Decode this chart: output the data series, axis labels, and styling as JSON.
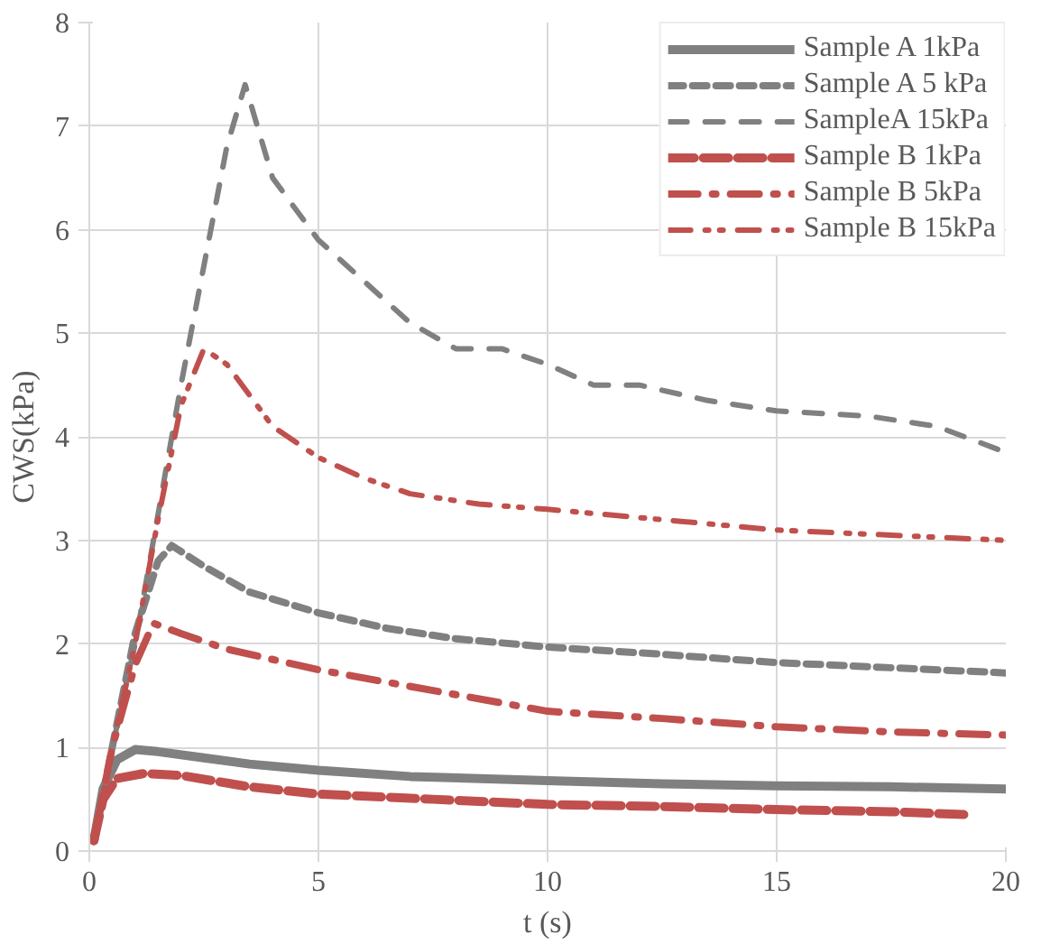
{
  "chart_data": {
    "type": "line",
    "xlabel": "t (s)",
    "ylabel": "CWS(kPa)",
    "xlim": [
      0,
      20
    ],
    "ylim": [
      0,
      8
    ],
    "xticks": [
      0,
      5,
      10,
      15,
      20
    ],
    "yticks": [
      0,
      1,
      2,
      3,
      4,
      5,
      6,
      7,
      8
    ],
    "grid": true,
    "legend": "top right",
    "series": [
      {
        "name": "Sample A 1kPa",
        "color": "#808080",
        "line_style": "solid",
        "x": [
          0.1,
          0.3,
          0.6,
          1.0,
          1.5,
          2.5,
          3.5,
          5,
          7,
          10,
          12.5,
          15,
          17.5,
          20
        ],
        "values": [
          0.1,
          0.6,
          0.88,
          0.98,
          0.96,
          0.9,
          0.84,
          0.78,
          0.72,
          0.68,
          0.65,
          0.63,
          0.62,
          0.6
        ]
      },
      {
        "name": "Sample A 5 kPa",
        "color": "#808080",
        "line_style": "dashed",
        "x": [
          0.1,
          0.5,
          1.0,
          1.5,
          1.8,
          2.5,
          3.5,
          5,
          6.5,
          8,
          10,
          12.5,
          15,
          17.5,
          20
        ],
        "values": [
          0.1,
          1.0,
          2.1,
          2.8,
          2.95,
          2.75,
          2.5,
          2.3,
          2.15,
          2.05,
          1.97,
          1.9,
          1.82,
          1.77,
          1.72
        ]
      },
      {
        "name": "SampleA 15kPa",
        "color": "#808080",
        "line_style": "dashed",
        "x": [
          0.1,
          0.5,
          1.0,
          2.0,
          3.0,
          3.4,
          4.0,
          5,
          6,
          7,
          8,
          9,
          10,
          11,
          12,
          13.5,
          15,
          17,
          18.5,
          20
        ],
        "values": [
          0.1,
          1.0,
          2.0,
          4.5,
          6.8,
          7.4,
          6.5,
          5.9,
          5.5,
          5.1,
          4.85,
          4.85,
          4.7,
          4.5,
          4.5,
          4.35,
          4.25,
          4.2,
          4.1,
          3.85
        ]
      },
      {
        "name": "Sample B 1kPa",
        "color": "#c0504d",
        "line_style": "dashed",
        "x": [
          0.1,
          0.3,
          0.6,
          1.2,
          2,
          3.5,
          5,
          7.5,
          10,
          12.5,
          15,
          17.5,
          19.2
        ],
        "values": [
          0.1,
          0.5,
          0.7,
          0.75,
          0.73,
          0.62,
          0.55,
          0.5,
          0.45,
          0.43,
          0.4,
          0.38,
          0.35
        ]
      },
      {
        "name": "Sample B 5kPa",
        "color": "#c0504d",
        "line_style": "dashdot",
        "x": [
          0.1,
          0.5,
          1.0,
          1.4,
          2,
          3,
          5,
          7.5,
          10,
          12.5,
          15,
          17.5,
          20
        ],
        "values": [
          0.1,
          1.0,
          1.8,
          2.2,
          2.1,
          1.95,
          1.75,
          1.55,
          1.35,
          1.28,
          1.2,
          1.15,
          1.12
        ]
      },
      {
        "name": "Sample B 15kPa",
        "color": "#c0504d",
        "line_style": "dashdot",
        "x": [
          0.1,
          0.5,
          1.0,
          1.5,
          2.0,
          2.5,
          3.0,
          4,
          5,
          6,
          7,
          8.5,
          10,
          12.5,
          15,
          17.5,
          20
        ],
        "values": [
          0.1,
          1.0,
          2.0,
          3.2,
          4.3,
          4.85,
          4.7,
          4.1,
          3.8,
          3.6,
          3.45,
          3.35,
          3.3,
          3.2,
          3.1,
          3.05,
          3.0
        ]
      }
    ]
  }
}
